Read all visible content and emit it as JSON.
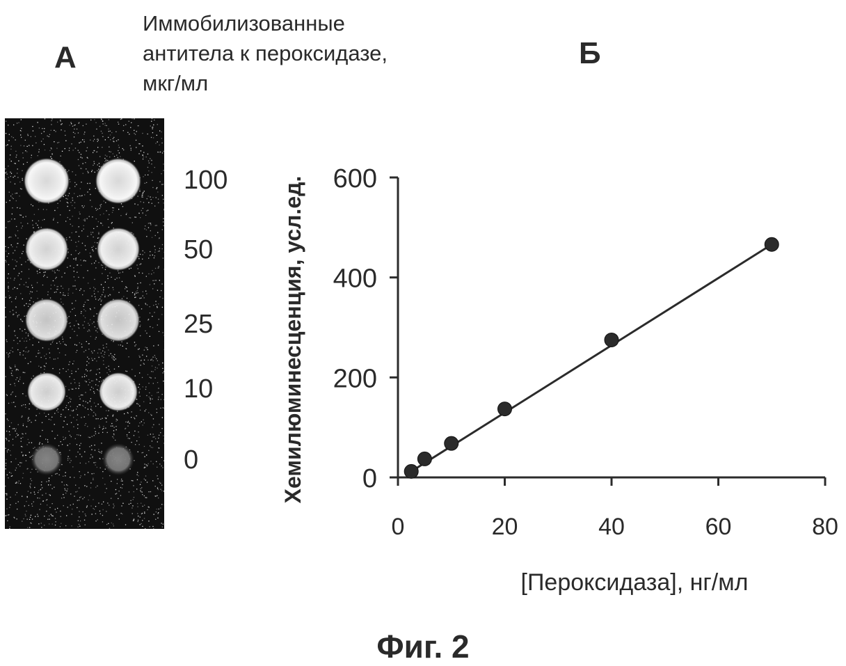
{
  "panel_a": {
    "letter": "А",
    "caption_lines": [
      "Иммобилизованные",
      "антитела к пероксидазе,",
      "мкг/мл"
    ],
    "concentrations": [
      "100",
      "50",
      "25",
      "10",
      "0"
    ],
    "spot_intensity": [
      1.0,
      0.92,
      0.85,
      0.9,
      0.4
    ]
  },
  "panel_b": {
    "letter": "Б"
  },
  "figure_caption": "Фиг. 2",
  "chart_data": {
    "type": "scatter",
    "title": "",
    "xlabel": "[Пероксидаза], нг/мл",
    "ylabel": "Хемилюминесценция, усл.ед.",
    "xlim": [
      0,
      80
    ],
    "ylim": [
      0,
      600
    ],
    "xticks": [
      "0",
      "20",
      "40",
      "60",
      "80"
    ],
    "yticks": [
      "0",
      "200",
      "400",
      "600"
    ],
    "grid": false,
    "series": [
      {
        "x": [
          2.5,
          5,
          10,
          20,
          40,
          70
        ],
        "y": [
          12,
          37,
          68,
          137,
          275,
          466
        ],
        "fit_line": {
          "x": [
            2.5,
            70
          ],
          "y": [
            12,
            466
          ]
        }
      }
    ],
    "colors": {
      "marker": "#2b2b2b",
      "line": "#2b2b2b",
      "axis": "#2b2b2b"
    }
  }
}
